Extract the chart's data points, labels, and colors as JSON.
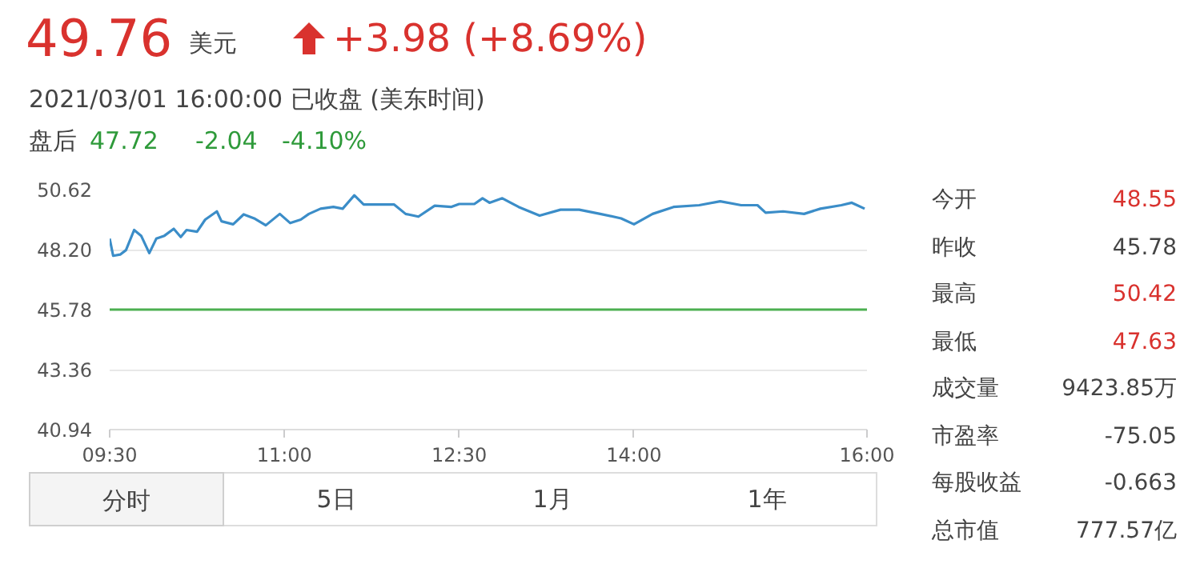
{
  "chart_data": {
    "type": "line",
    "title": "49.76",
    "subtitle": "2021/03/01 16:00:00  已收盘  (美东时间)",
    "x": [
      9.5,
      9.53,
      9.59,
      9.64,
      9.71,
      9.77,
      9.84,
      9.9,
      9.97,
      10.05,
      10.11,
      10.16,
      10.25,
      10.32,
      10.42,
      10.46,
      10.56,
      10.65,
      10.74,
      10.84,
      10.96,
      11.05,
      11.14,
      11.21,
      11.31,
      11.42,
      11.5,
      11.6,
      11.68,
      11.94,
      12.04,
      12.15,
      12.29,
      12.43,
      12.5,
      12.63,
      12.7,
      12.76,
      12.87,
      13.01,
      13.19,
      13.37,
      13.53,
      13.71,
      13.89,
      14.0,
      14.16,
      14.34,
      14.56,
      14.74,
      14.92,
      15.06,
      15.13,
      15.28,
      15.46,
      15.6,
      15.78,
      15.87,
      15.98
    ],
    "series": [
      {
        "color": "#3b8dc8",
        "values": [
          48.64,
          47.95,
          48.0,
          48.18,
          48.99,
          48.76,
          48.06,
          48.64,
          48.76,
          49.04,
          48.71,
          48.99,
          48.92,
          49.41,
          49.74,
          49.34,
          49.22,
          49.62,
          49.46,
          49.18,
          49.64,
          49.27,
          49.41,
          49.64,
          49.85,
          49.92,
          49.85,
          50.39,
          50.02,
          50.02,
          49.64,
          49.53,
          49.97,
          49.92,
          50.04,
          50.04,
          50.27,
          50.09,
          50.27,
          49.92,
          49.57,
          49.81,
          49.81,
          49.64,
          49.46,
          49.22,
          49.64,
          49.92,
          49.99,
          50.15,
          49.99,
          49.99,
          49.69,
          49.74,
          49.64,
          49.85,
          49.99,
          50.09,
          49.85
        ]
      }
    ],
    "xlim": [
      9.5,
      16.0
    ],
    "ylim": [
      40.94,
      50.62
    ],
    "xticks": [
      {
        "value": 9.5,
        "label": "09:30"
      },
      {
        "value": 11,
        "label": "11:00"
      },
      {
        "value": 12.5,
        "label": "12:30"
      },
      {
        "value": 14,
        "label": "14:00"
      },
      {
        "value": 16,
        "label": "16:00"
      }
    ],
    "yticks": [
      40.94,
      43.36,
      45.78,
      {
        "value": 48.2,
        "label": "48.20"
      },
      50.62
    ],
    "ref_lines": [
      {
        "axis": "y",
        "value": 45.78,
        "color": "#4caf50"
      }
    ],
    "grid": "y",
    "line_style": "solid",
    "marker": "none",
    "annotations": [
      "美元",
      "+3.98 (+8.69%)",
      "盘后",
      "47.72",
      "-2.04",
      "-4.10%",
      "今开",
      "48.55",
      "昨收",
      "45.78",
      "最高",
      "50.42",
      "最低",
      "47.63",
      "成交量",
      "9423.85万",
      "市盈率",
      "-75.05",
      "每股收益",
      "-0.663",
      "总市值",
      "777.57亿",
      "分时",
      "5日",
      "1月",
      "1年"
    ]
  }
}
